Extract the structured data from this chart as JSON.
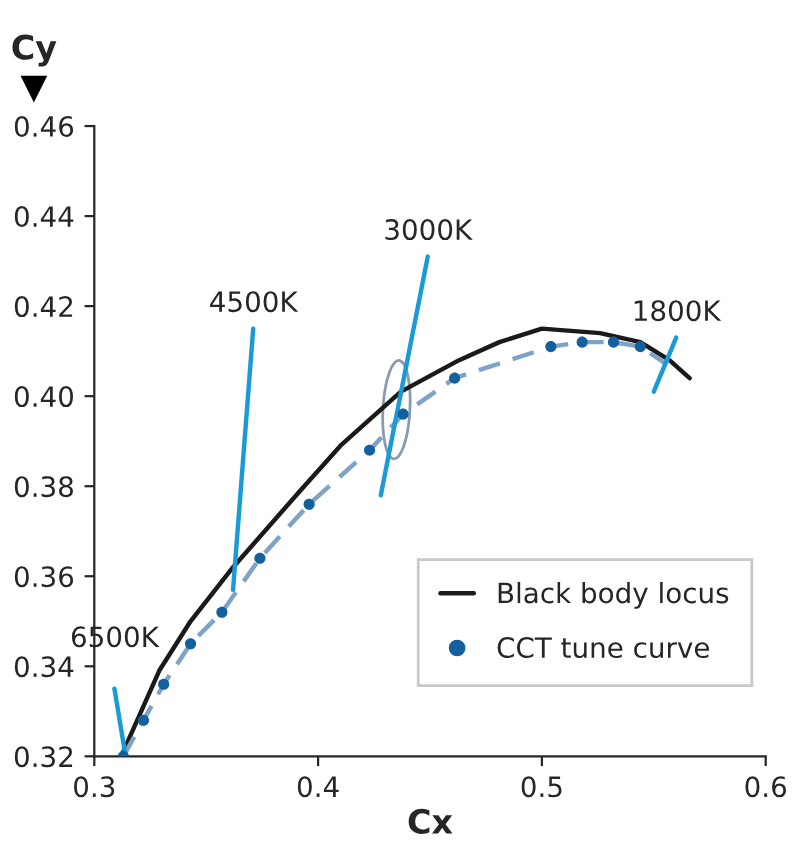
{
  "chart_data": {
    "type": "line",
    "xlabel": "Cx",
    "ylabel": "Cy",
    "xlim": [
      0.3,
      0.6
    ],
    "xticks": [
      0.3,
      0.4,
      0.5,
      0.6
    ],
    "ylim": [
      0.32,
      0.46
    ],
    "yticks": [
      {
        "value": 0.32,
        "label": "0.32"
      },
      {
        "value": 0.34,
        "label": "0.34"
      },
      {
        "value": 0.36,
        "label": "0.36"
      },
      {
        "value": 0.38,
        "label": "0.38"
      },
      {
        "value": 0.4,
        "label": "0.40"
      },
      {
        "value": 0.42,
        "label": "0.42"
      },
      {
        "value": 0.44,
        "label": "0.44"
      },
      {
        "value": 0.46,
        "label": "0.46"
      }
    ],
    "grid": false,
    "legend": "bottom right",
    "series": [
      {
        "name": "Black body locus",
        "type": "line",
        "color": "#1a1a1a",
        "line_style": "solid",
        "marker": "none",
        "x": [
          0.312,
          0.329,
          0.343,
          0.362,
          0.392,
          0.41,
          0.437,
          0.463,
          0.481,
          0.5,
          0.526,
          0.544,
          0.557,
          0.566
        ],
        "values": [
          0.32,
          0.339,
          0.35,
          0.362,
          0.379,
          0.389,
          0.401,
          0.408,
          0.412,
          0.415,
          0.414,
          0.412,
          0.408,
          0.404
        ]
      },
      {
        "color": "#7fa3c6",
        "line_style": "dashed",
        "marker": "none",
        "x": [
          0.313,
          0.322,
          0.331,
          0.343,
          0.357,
          0.374,
          0.396,
          0.423,
          0.438,
          0.461,
          0.504,
          0.518,
          0.532,
          0.544,
          0.556
        ],
        "values": [
          0.32,
          0.328,
          0.336,
          0.345,
          0.352,
          0.364,
          0.376,
          0.388,
          0.396,
          0.404,
          0.411,
          0.412,
          0.412,
          0.411,
          0.407
        ]
      },
      {
        "name": "CCT tune curve",
        "type": "scatter",
        "color": "#14609e",
        "marker": "circle",
        "x": [
          0.313,
          0.322,
          0.331,
          0.343,
          0.357,
          0.374,
          0.396,
          0.423,
          0.438,
          0.461,
          0.504,
          0.518,
          0.532,
          0.544
        ],
        "values": [
          0.32,
          0.328,
          0.336,
          0.345,
          0.352,
          0.364,
          0.376,
          0.388,
          0.396,
          0.404,
          0.411,
          0.412,
          0.412,
          0.411
        ]
      },
      {
        "type": "line",
        "color": "#1a9ad6",
        "line_style": "solid",
        "marker": "none",
        "x": [
          0.309,
          0.314
        ],
        "values": [
          0.335,
          0.32
        ]
      },
      {
        "type": "line",
        "color": "#1a9ad6",
        "line_style": "solid",
        "marker": "none",
        "x": [
          0.371,
          0.362
        ],
        "values": [
          0.415,
          0.357
        ]
      },
      {
        "type": "line",
        "color": "#1a9ad6",
        "line_style": "solid",
        "marker": "none",
        "x": [
          0.449,
          0.428
        ],
        "values": [
          0.431,
          0.378
        ]
      },
      {
        "type": "line",
        "color": "#1a9ad6",
        "line_style": "solid",
        "marker": "none",
        "x": [
          0.56,
          0.55
        ],
        "values": [
          0.413,
          0.401
        ]
      }
    ],
    "annotations": [
      {
        "text": "6500K",
        "x": 0.309,
        "y": 0.335
      },
      {
        "text": "4500K",
        "x": 0.371,
        "y": 0.415
      },
      {
        "text": "3000K",
        "x": 0.449,
        "y": 0.431
      },
      {
        "text": "1800K",
        "x": 0.56,
        "y": 0.413
      }
    ]
  }
}
